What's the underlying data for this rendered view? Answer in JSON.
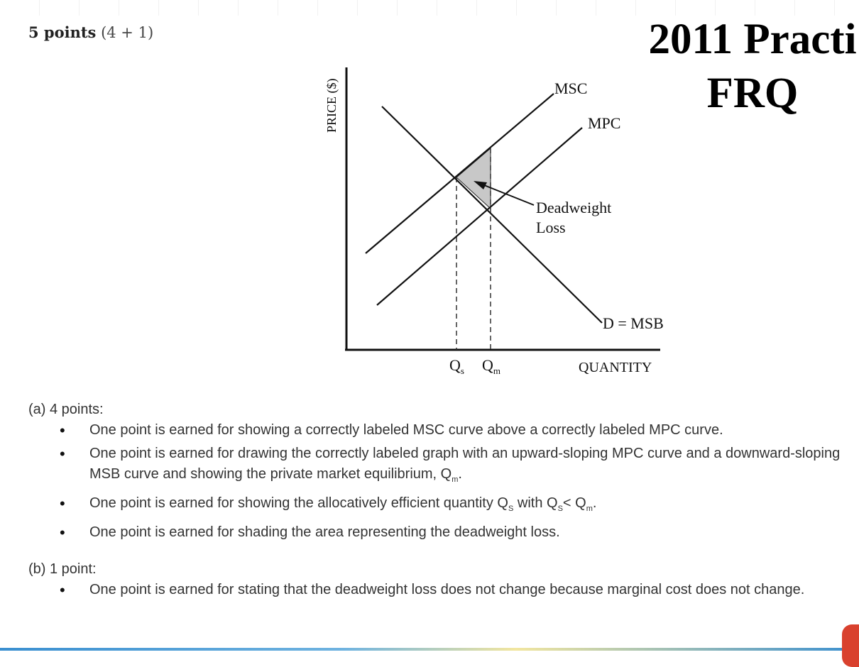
{
  "header": {
    "points": "5 points",
    "breakdown": "(4 + 1)"
  },
  "slide_title": {
    "line1": "2011 Practi",
    "line2": "FRQ"
  },
  "graph": {
    "y_axis_label": "PRICE ($)",
    "x_axis_label": "QUANTITY",
    "curve_msc": "MSC",
    "curve_mpc": "MPC",
    "curve_demand": "D = MSB",
    "dwl_line1": "Deadweight",
    "dwl_line2": "Loss",
    "qs_letter": "Q",
    "qs_sub": "s",
    "qm_letter": "Q",
    "qm_sub": "m",
    "dwl_fill": "#c8c8c8"
  },
  "part_a": {
    "label": "(a)  4 points:",
    "b1": "One point is earned for showing a correctly labeled MSC curve above a correctly labeled MPC curve.",
    "b2_text": "One point is earned for drawing the correctly labeled graph with an upward-sloping MPC curve and a downward-sloping MSB curve and showing the private market equilibrium, ",
    "b2_q": "Q",
    "b2_sub": "m",
    "b2_end": ".",
    "b3_text": "One point is earned for showing the allocatively efficient quantity ",
    "b3_q1": "Q",
    "b3_sub1": "S",
    "b3_mid": " with ",
    "b3_q2": "Q",
    "b3_sub2": "S",
    "b3_lt": "< ",
    "b3_q3": "Q",
    "b3_sub3": "m",
    "b3_end": ".",
    "b4": "One point is earned for shading the area representing the deadweight loss."
  },
  "part_b": {
    "label": "(b)  1 point:",
    "b1": "One point is earned for stating that the deadweight loss does not change because marginal cost does not change."
  }
}
